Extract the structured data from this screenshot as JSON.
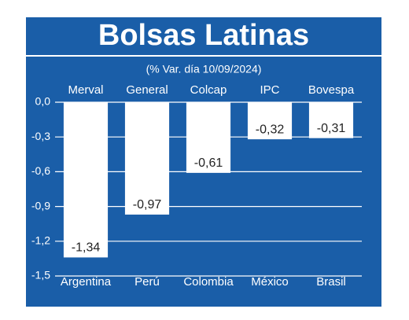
{
  "chart_data": {
    "type": "bar",
    "title": "Bolsas Latinas",
    "subtitle": "(% Var. día 10/09/2024)",
    "index_names": [
      "Merval",
      "General",
      "Colcap",
      "IPC",
      "Bovespa"
    ],
    "categories": [
      "Argentina",
      "Perú",
      "Colombia",
      "México",
      "Brasil"
    ],
    "values": [
      -1.34,
      -0.97,
      -0.61,
      -0.32,
      -0.31
    ],
    "value_labels": [
      "-1,34",
      "-0,97",
      "-0,61",
      "-0,32",
      "-0,31"
    ],
    "color": "#ffffff",
    "background": "#1a5ea8",
    "ylim": [
      -1.5,
      0
    ],
    "yticks": [
      {
        "value": 0,
        "label": "0,0"
      },
      {
        "value": -0.3,
        "label": "-0,3"
      },
      {
        "value": -0.6,
        "label": "-0,6"
      },
      {
        "value": -0.9,
        "label": "-0,9"
      },
      {
        "value": -1.2,
        "label": "-1,2"
      },
      {
        "value": -1.5,
        "label": "-1,5"
      }
    ],
    "grid": true
  }
}
